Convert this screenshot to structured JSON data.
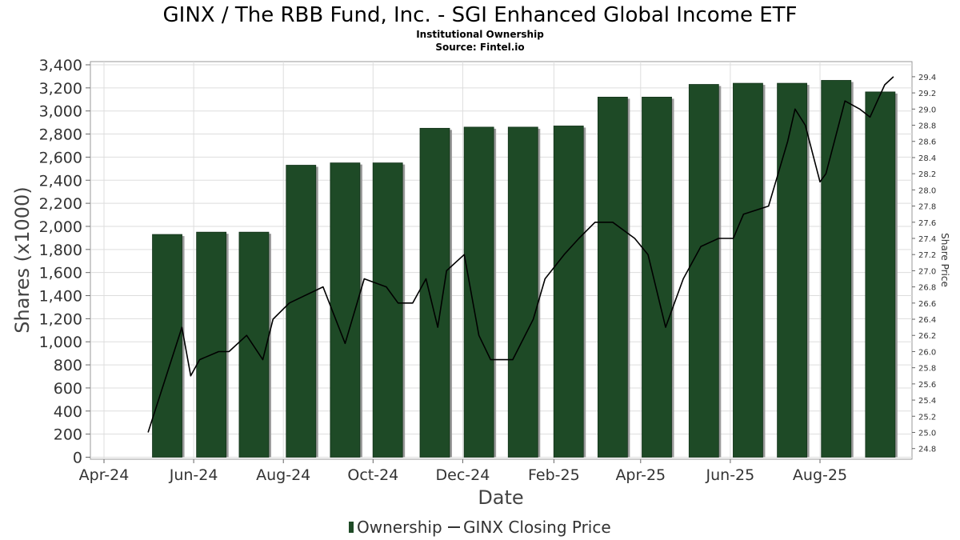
{
  "chart_data": {
    "type": "bar",
    "title": "GINX / The RBB Fund, Inc. - SGI Enhanced Global Income ETF",
    "subtitle": "Institutional Ownership",
    "source": "Source: Fintel.io",
    "xlabel": "Date",
    "ylabel": "Shares (x1000)",
    "y2label": "Share Price",
    "ylim": [
      0,
      3400
    ],
    "y2lim": [
      24.72,
      29.56
    ],
    "yticks": [
      "0",
      "200",
      "400",
      "600",
      "800",
      "1,000",
      "1,200",
      "1,400",
      "1,600",
      "1,800",
      "2,000",
      "2,200",
      "2,400",
      "2,600",
      "2,800",
      "3,000",
      "3,200",
      "3,400"
    ],
    "y2ticks": [
      "24.8",
      "25.0",
      "25.2",
      "25.4",
      "25.6",
      "25.8",
      "26.0",
      "26.2",
      "26.4",
      "26.6",
      "26.8",
      "27.0",
      "27.2",
      "27.4",
      "27.6",
      "27.8",
      "28.0",
      "28.2",
      "28.4",
      "28.6",
      "28.8",
      "29.0",
      "29.2",
      "29.4"
    ],
    "xticks": [
      {
        "label": "Apr-24",
        "date": "2024-04-01"
      },
      {
        "label": "Jun-24",
        "date": "2024-06-01"
      },
      {
        "label": "Aug-24",
        "date": "2024-08-01"
      },
      {
        "label": "Oct-24",
        "date": "2024-10-01"
      },
      {
        "label": "Dec-24",
        "date": "2024-12-01"
      },
      {
        "label": "Feb-25",
        "date": "2025-02-01"
      },
      {
        "label": "Apr-25",
        "date": "2025-04-01"
      },
      {
        "label": "Jun-25",
        "date": "2025-06-01"
      },
      {
        "label": "Aug-25",
        "date": "2025-08-01"
      }
    ],
    "grid": true,
    "legend_position": "bottom-center",
    "colors": {
      "bar": "#1e4a26",
      "bar_shadow": "#9a9a9a",
      "line": "#000000",
      "grid": "#dddddd"
    },
    "series": [
      {
        "name": "Ownership",
        "type": "bar",
        "points": [
          {
            "date": "2024-05-14",
            "value": 1930
          },
          {
            "date": "2024-06-13",
            "value": 1950
          },
          {
            "date": "2024-07-12",
            "value": 1950
          },
          {
            "date": "2024-08-13",
            "value": 2530
          },
          {
            "date": "2024-09-12",
            "value": 2550
          },
          {
            "date": "2024-10-11",
            "value": 2550
          },
          {
            "date": "2024-11-12",
            "value": 2850
          },
          {
            "date": "2024-12-12",
            "value": 2860
          },
          {
            "date": "2025-01-11",
            "value": 2860
          },
          {
            "date": "2025-02-11",
            "value": 2870
          },
          {
            "date": "2025-03-13",
            "value": 3120
          },
          {
            "date": "2025-04-12",
            "value": 3120
          },
          {
            "date": "2025-05-14",
            "value": 3230
          },
          {
            "date": "2025-06-13",
            "value": 3240
          },
          {
            "date": "2025-07-13",
            "value": 3240
          },
          {
            "date": "2025-08-12",
            "value": 3265
          },
          {
            "date": "2025-09-11",
            "value": 3165
          }
        ]
      },
      {
        "name": "GINX Closing Price",
        "type": "line",
        "points": [
          {
            "date": "2024-05-01",
            "value": 25.0
          },
          {
            "date": "2024-05-24",
            "value": 26.3
          },
          {
            "date": "2024-05-30",
            "value": 25.7
          },
          {
            "date": "2024-06-05",
            "value": 25.9
          },
          {
            "date": "2024-06-18",
            "value": 26.0
          },
          {
            "date": "2024-06-25",
            "value": 26.0
          },
          {
            "date": "2024-07-07",
            "value": 26.2
          },
          {
            "date": "2024-07-18",
            "value": 25.9
          },
          {
            "date": "2024-07-25",
            "value": 26.4
          },
          {
            "date": "2024-08-05",
            "value": 26.6
          },
          {
            "date": "2024-08-28",
            "value": 26.8
          },
          {
            "date": "2024-09-12",
            "value": 26.1
          },
          {
            "date": "2024-09-25",
            "value": 26.9
          },
          {
            "date": "2024-10-10",
            "value": 26.8
          },
          {
            "date": "2024-10-18",
            "value": 26.6
          },
          {
            "date": "2024-10-28",
            "value": 26.6
          },
          {
            "date": "2024-11-06",
            "value": 26.9
          },
          {
            "date": "2024-11-14",
            "value": 26.3
          },
          {
            "date": "2024-11-20",
            "value": 27.0
          },
          {
            "date": "2024-12-02",
            "value": 27.2
          },
          {
            "date": "2024-12-12",
            "value": 26.2
          },
          {
            "date": "2024-12-20",
            "value": 25.9
          },
          {
            "date": "2025-01-04",
            "value": 25.9
          },
          {
            "date": "2025-01-18",
            "value": 26.4
          },
          {
            "date": "2025-01-26",
            "value": 26.9
          },
          {
            "date": "2025-02-08",
            "value": 27.2
          },
          {
            "date": "2025-02-18",
            "value": 27.4
          },
          {
            "date": "2025-03-01",
            "value": 27.6
          },
          {
            "date": "2025-03-13",
            "value": 27.6
          },
          {
            "date": "2025-03-28",
            "value": 27.4
          },
          {
            "date": "2025-04-06",
            "value": 27.2
          },
          {
            "date": "2025-04-18",
            "value": 26.3
          },
          {
            "date": "2025-04-30",
            "value": 26.9
          },
          {
            "date": "2025-05-12",
            "value": 27.3
          },
          {
            "date": "2025-05-24",
            "value": 27.4
          },
          {
            "date": "2025-06-03",
            "value": 27.4
          },
          {
            "date": "2025-06-10",
            "value": 27.7
          },
          {
            "date": "2025-06-27",
            "value": 27.8
          },
          {
            "date": "2025-07-10",
            "value": 28.6
          },
          {
            "date": "2025-07-15",
            "value": 29.0
          },
          {
            "date": "2025-07-22",
            "value": 28.8
          },
          {
            "date": "2025-08-01",
            "value": 28.1
          },
          {
            "date": "2025-08-05",
            "value": 28.2
          },
          {
            "date": "2025-08-18",
            "value": 29.1
          },
          {
            "date": "2025-08-28",
            "value": 29.0
          },
          {
            "date": "2025-09-04",
            "value": 28.9
          },
          {
            "date": "2025-09-14",
            "value": 29.3
          },
          {
            "date": "2025-09-20",
            "value": 29.4
          }
        ]
      }
    ]
  }
}
